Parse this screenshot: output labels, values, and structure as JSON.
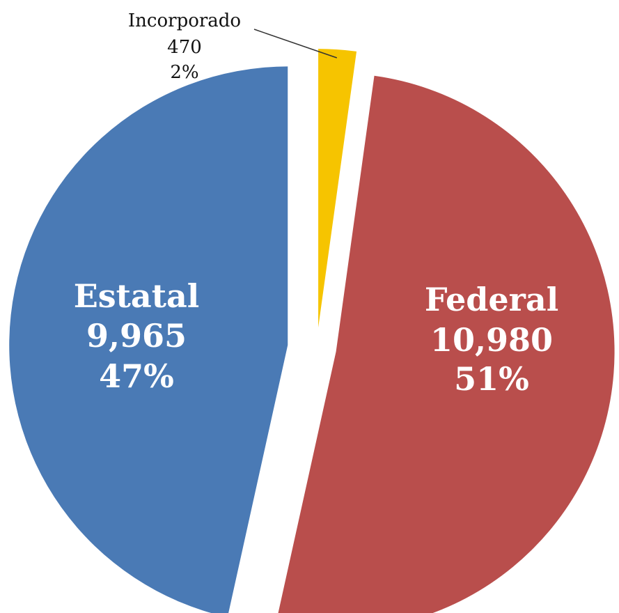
{
  "chart_data": {
    "type": "pie",
    "title": "",
    "slices": [
      {
        "name": "Incorporado",
        "value": 470,
        "percent": "2%",
        "value_label": "470",
        "color": "#F6C400"
      },
      {
        "name": "Federal",
        "value": 10980,
        "percent": "51%",
        "value_label": "10,980",
        "color": "#B94E4C"
      },
      {
        "name": "Estatal",
        "value": 9965,
        "percent": "47%",
        "value_label": "9,965",
        "color": "#4A7AB5"
      }
    ],
    "exploded": true,
    "legend": "none"
  }
}
